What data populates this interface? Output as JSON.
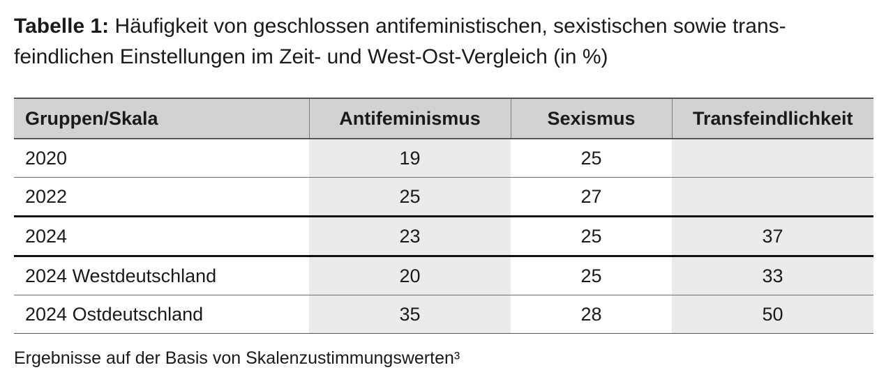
{
  "title": {
    "label": "Tabelle 1:",
    "text": "Häufigkeit von geschlossen antifeministischen, sexistischen sowie trans-feindlichen Einstellungen im Zeit- und West-Ost-Vergleich (in %)"
  },
  "table": {
    "headers": [
      "Gruppen/Skala",
      "Antifeminismus",
      "Sexismus",
      "Transfeindlichkeit"
    ],
    "rows": [
      [
        "2020",
        "19",
        "25",
        ""
      ],
      [
        "2022",
        "25",
        "27",
        ""
      ],
      [
        "2024",
        "23",
        "25",
        "37"
      ],
      [
        "2024 Westdeutschland",
        "20",
        "25",
        "33"
      ],
      [
        "2024 Ostdeutschland",
        "35",
        "28",
        "50"
      ]
    ]
  },
  "footnote": "Ergebnisse auf der Basis von Skalenzustimmungswerten³"
}
